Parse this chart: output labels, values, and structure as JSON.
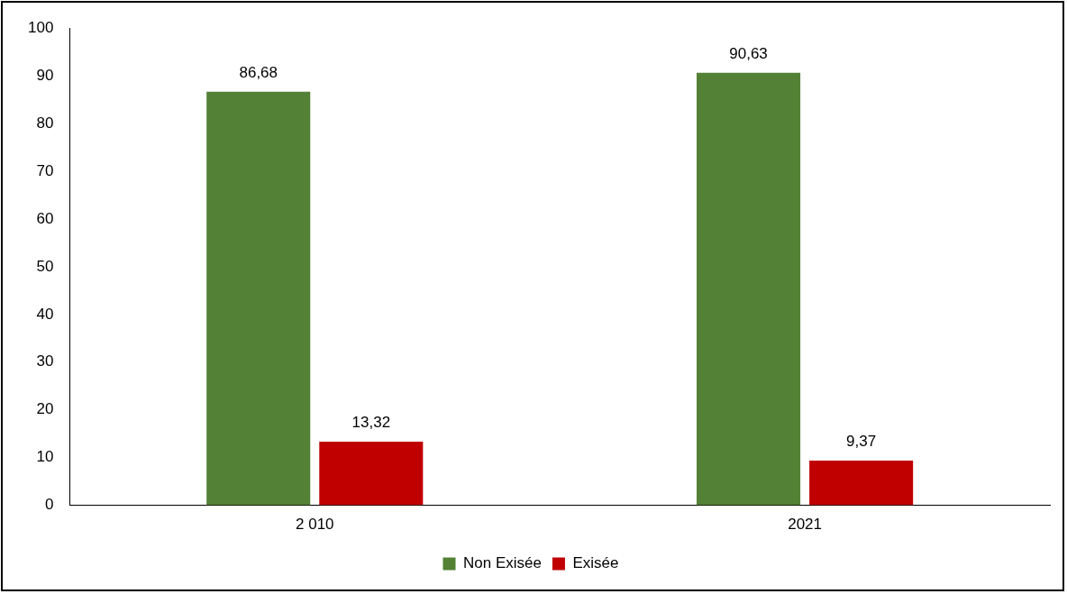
{
  "chart_data": {
    "type": "bar",
    "categories": [
      "2 010",
      "2021"
    ],
    "series": [
      {
        "name": "Non Exisée",
        "color": "#538135",
        "values": [
          86.68,
          90.63
        ],
        "value_labels": [
          "86,68",
          "90,63"
        ]
      },
      {
        "name": "Exisée",
        "color": "#c00000",
        "values": [
          13.32,
          9.37
        ],
        "value_labels": [
          "13,32",
          "9,37"
        ]
      }
    ],
    "ylim": [
      0,
      100
    ],
    "yticks": [
      0,
      10,
      20,
      30,
      40,
      50,
      60,
      70,
      80,
      90,
      100
    ],
    "grid": false,
    "legend": "bottom"
  }
}
